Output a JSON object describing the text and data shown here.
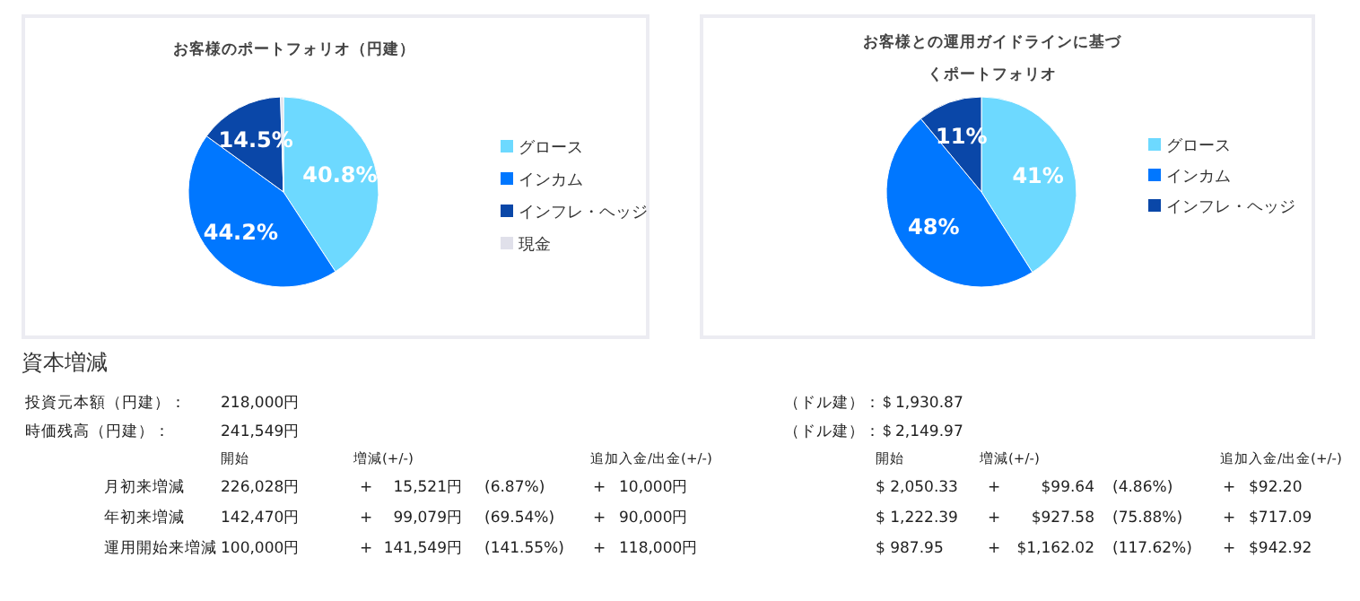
{
  "chart_data": [
    {
      "type": "pie",
      "title": "お客様のポートフォリオ（円建）",
      "categories": [
        "グロース",
        "インカム",
        "インフレ・ヘッジ",
        "現金"
      ],
      "values": [
        40.8,
        44.2,
        14.5,
        0.5
      ],
      "colors": [
        "#6dd9ff",
        "#0077ff",
        "#0a47a8",
        "#e0e0ea"
      ],
      "value_labels": [
        "40.8%",
        "44.2%",
        "14.5%",
        null
      ],
      "legend": "right"
    },
    {
      "type": "pie",
      "title": "お客様との運用ガイドラインに基づくポートフォリオ",
      "categories": [
        "グロース",
        "インカム",
        "インフレ・ヘッジ"
      ],
      "values": [
        41,
        48,
        11
      ],
      "colors": [
        "#6dd9ff",
        "#0077ff",
        "#0a47a8"
      ],
      "value_labels": [
        "41%",
        "48%",
        "11%"
      ],
      "legend": "right"
    },
    {
      "type": "other",
      "title": "資本増減",
      "annotations": [
        "投資元本額（円建）：",
        "218,000円",
        "（ドル建）：",
        "＄1,930.87",
        "時価残高（円建）：",
        "241,549円",
        "（ドル建）：",
        "＄2,149.97",
        "開始",
        "増減(+/-)",
        "追加入金/出金(+/-)",
        "開始",
        "増減(+/-)",
        "追加入金/出金(+/-)",
        "月初来増減",
        "226,028円",
        "+",
        "15,521円",
        "(6.87%)",
        "+",
        "10,000円",
        "$ 2,050.33",
        "+",
        "$99.64",
        "(4.86%)",
        "+",
        "$92.20",
        "年初来増減",
        "142,470円",
        "+",
        "99,079円",
        "(69.54%)",
        "+",
        "90,000円",
        "$ 1,222.39",
        "+",
        "$927.58",
        "(75.88%)",
        "+",
        "$717.09",
        "運用開始来増減",
        "100,000円",
        "+",
        "141,549円",
        "(141.55%)",
        "+",
        "118,000円",
        "$ 987.95",
        "+",
        "$1,162.02",
        "(117.62%)",
        "+",
        "$942.92"
      ]
    }
  ]
}
